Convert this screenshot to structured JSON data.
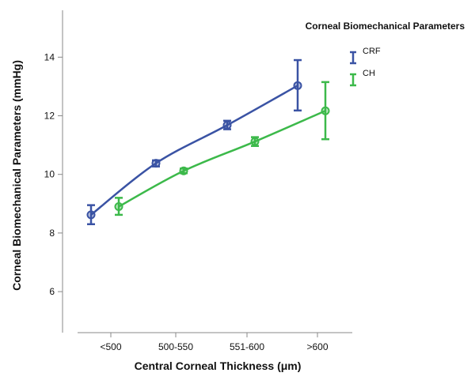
{
  "chart_data": {
    "type": "line",
    "title": "",
    "xlabel": "Central Corneal Thickness (μm)",
    "ylabel": "Corneal Biomechanical Parameters  (mmHg)",
    "categories": [
      "<500",
      "500-550",
      "551-600",
      ">600"
    ],
    "ylim": [
      4.6,
      15.6
    ],
    "yticks": [
      6,
      8,
      10,
      12,
      14
    ],
    "grid": false,
    "legend": {
      "title": "Corneal Biomechanical Parameters",
      "position": "top-right"
    },
    "series": [
      {
        "name": "CRF",
        "color": "#3a53a4",
        "values": [
          8.62,
          10.38,
          11.68,
          13.03
        ],
        "error_low": [
          8.3,
          10.27,
          11.54,
          12.18
        ],
        "error_high": [
          8.95,
          10.48,
          11.83,
          13.9
        ]
      },
      {
        "name": "CH",
        "color": "#3cb94a",
        "values": [
          8.9,
          10.12,
          11.12,
          12.17
        ],
        "error_low": [
          8.62,
          10.04,
          10.97,
          11.2
        ],
        "error_high": [
          9.2,
          10.2,
          11.27,
          13.15
        ]
      }
    ]
  }
}
